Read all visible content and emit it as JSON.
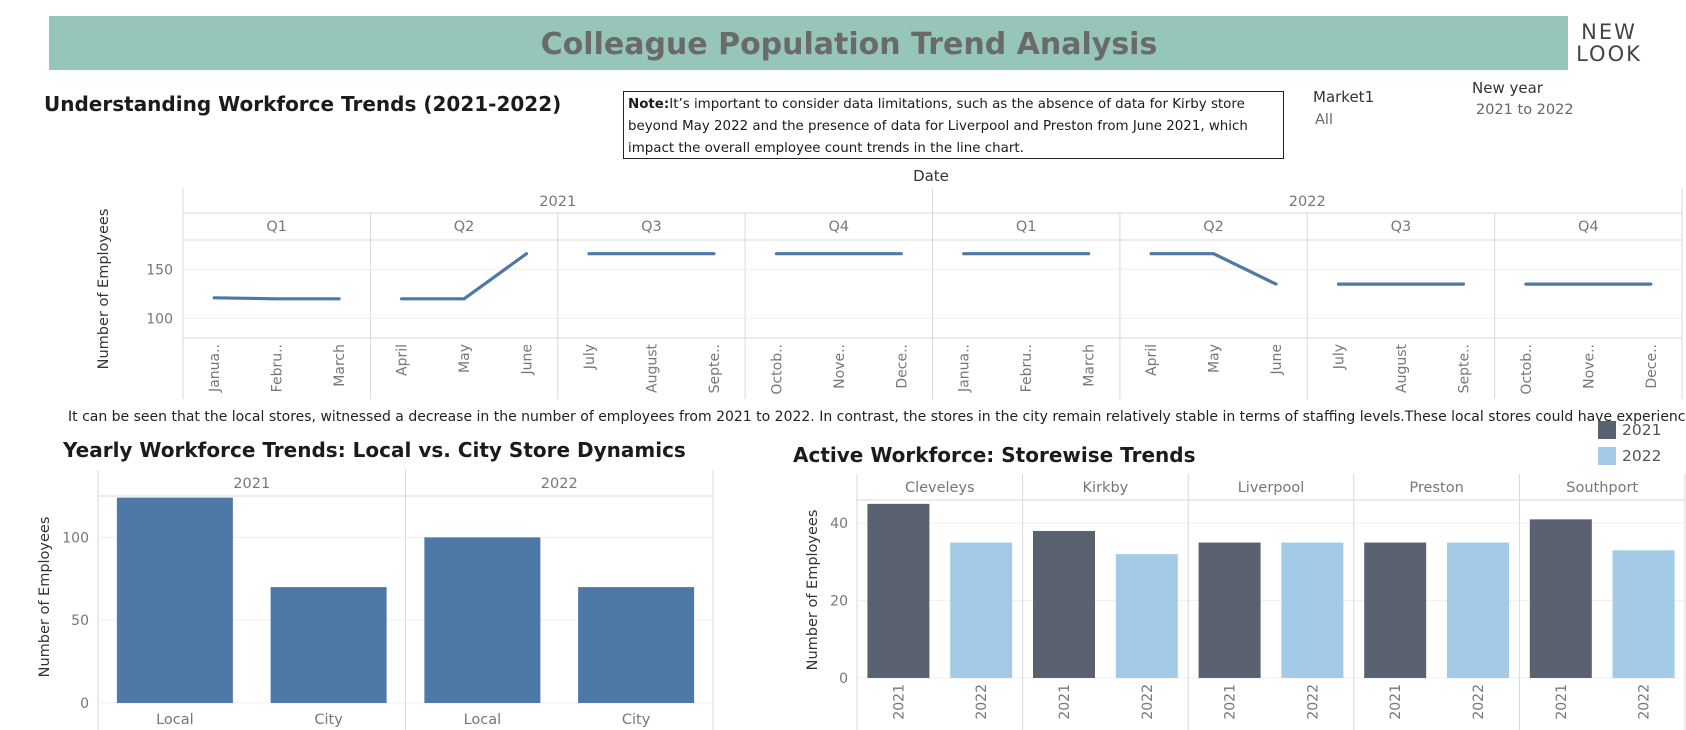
{
  "header": {
    "title": "Colleague Population Trend Analysis",
    "logo_line1": "NEW",
    "logo_line2": "LOOK"
  },
  "page_title": "Understanding Workforce Trends (2021-2022)",
  "note": {
    "label": "Note:",
    "text": "It’s important to consider data limitations, such as the absence of data for Kirby store beyond May 2022 and the presence of data for Liverpool and Preston from June 2021, which impact the overall employee count trends in the line chart."
  },
  "filters": [
    {
      "label": "Market1",
      "value": "All"
    },
    {
      "label": "New year",
      "value": "2021 to 2022"
    }
  ],
  "insight": "It can be seen that the local stores, witnessed a decrease in the number of employees from 2021 to 2022. In contrast, the stores in the city remain relatively stable in terms of staffing levels.These local stores could have experience..",
  "legend": [
    {
      "label": "2021",
      "color": "#5a6170"
    },
    {
      "label": "2022",
      "color": "#a3cbe7"
    }
  ],
  "colors": {
    "line": "#4e79a7",
    "bar": "#4e79a7",
    "y2021": "#5a6170",
    "y2022": "#a3cbe7"
  },
  "chart_data": [
    {
      "type": "line",
      "title": "",
      "xlabel": "Date",
      "ylabel": "Number of Employees",
      "yticks": [
        100,
        150
      ],
      "ylim": [
        80,
        180
      ],
      "years": [
        "2021",
        "2022"
      ],
      "quarters": [
        "Q1",
        "Q2",
        "Q3",
        "Q4",
        "Q1",
        "Q2",
        "Q3",
        "Q4"
      ],
      "months": [
        "Janua..",
        "Febru..",
        "March",
        "April",
        "May",
        "June",
        "July",
        "August",
        "Septe..",
        "Octob..",
        "Nove..",
        "Dece..",
        "Janua..",
        "Febru..",
        "March",
        "April",
        "May",
        "June",
        "July",
        "August",
        "Septe..",
        "Octob..",
        "Nove..",
        "Dece.."
      ],
      "values": [
        121,
        120,
        120,
        120,
        120,
        166,
        166,
        166,
        166,
        166,
        166,
        166,
        166,
        166,
        166,
        166,
        166,
        135,
        135,
        135,
        135,
        135,
        135,
        135
      ]
    },
    {
      "type": "bar",
      "title": "Yearly Workforce Trends: Local vs. City Store Dynamics",
      "ylabel": "Number of Employees",
      "yticks": [
        0,
        50,
        100
      ],
      "ylim": [
        0,
        125
      ],
      "panels": [
        {
          "name": "2021",
          "categories": [
            "Local",
            "City"
          ],
          "values": [
            124,
            70
          ]
        },
        {
          "name": "2022",
          "categories": [
            "Local",
            "City"
          ],
          "values": [
            100,
            70
          ]
        }
      ]
    },
    {
      "type": "bar",
      "title": "Active Workforce: Storewise Trends",
      "ylabel": "Number of Employees",
      "yticks": [
        0,
        20,
        40
      ],
      "ylim": [
        0,
        46
      ],
      "categories": [
        "2021",
        "2022"
      ],
      "panels": [
        {
          "name": "Cleveleys",
          "values": [
            45,
            35
          ]
        },
        {
          "name": "Kirkby",
          "values": [
            38,
            32
          ]
        },
        {
          "name": "Liverpool",
          "values": [
            35,
            35
          ]
        },
        {
          "name": "Preston",
          "values": [
            35,
            35
          ]
        },
        {
          "name": "Southport",
          "values": [
            41,
            33
          ]
        }
      ]
    }
  ]
}
